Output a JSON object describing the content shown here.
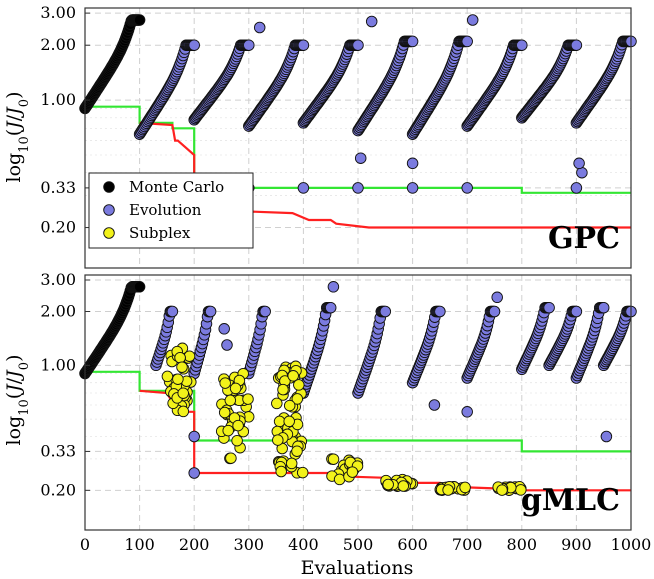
{
  "chart_data": [
    {
      "type": "scatter",
      "title": "GPC",
      "ylabel": "log10(J/J0)",
      "xlabel": "",
      "xlim": [
        0,
        1000
      ],
      "ylim": [
        0.12,
        3.2
      ],
      "y_scale": "log",
      "x_ticks": [
        0,
        100,
        200,
        300,
        400,
        500,
        600,
        700,
        800,
        900,
        1000
      ],
      "y_ticks": [
        0.2,
        0.33,
        1.0,
        2.0,
        3.0
      ],
      "y_tick_labels": [
        "0.20",
        "0.33",
        "1.00",
        "2.00",
        "3.00"
      ],
      "grid": true,
      "legend": {
        "placement": "lower-left",
        "entries": [
          {
            "label": "Monte Carlo",
            "color": "#000000"
          },
          {
            "label": "Evolution",
            "color": "#7b7bdf"
          },
          {
            "label": "Subplex",
            "color": "#f2f21a"
          }
        ]
      },
      "colors": {
        "monte_carlo": "#000000",
        "evolution": "#7b7bdf",
        "subplex": "#f2f21a",
        "best_line": "#ff2020",
        "green_line": "#33e633"
      },
      "monte_carlo": {
        "x_range": [
          0,
          100
        ],
        "y_start": 0.9,
        "y_end": 2.75
      },
      "evolution_generations": [
        {
          "x_range": [
            100,
            200
          ],
          "y_start": 0.65,
          "y_end": 2.0
        },
        {
          "x_range": [
            200,
            300
          ],
          "y_start": 0.78,
          "y_end": 2.0
        },
        {
          "x_range": [
            300,
            400
          ],
          "y_start": 0.72,
          "y_end": 2.0
        },
        {
          "x_range": [
            400,
            500
          ],
          "y_start": 0.75,
          "y_end": 2.0
        },
        {
          "x_range": [
            500,
            600
          ],
          "y_start": 0.68,
          "y_end": 2.1
        },
        {
          "x_range": [
            600,
            700
          ],
          "y_start": 0.65,
          "y_end": 2.1
        },
        {
          "x_range": [
            700,
            800
          ],
          "y_start": 0.72,
          "y_end": 2.0
        },
        {
          "x_range": [
            800,
            900
          ],
          "y_start": 0.8,
          "y_end": 2.0
        },
        {
          "x_range": [
            900,
            1000
          ],
          "y_start": 0.75,
          "y_end": 2.1
        }
      ],
      "evolution_extra_points": [
        [
          200,
          0.33
        ],
        [
          300,
          0.33
        ],
        [
          400,
          0.33
        ],
        [
          500,
          0.33
        ],
        [
          600,
          0.33
        ],
        [
          700,
          0.33
        ],
        [
          900,
          0.33
        ],
        [
          910,
          0.4
        ],
        [
          320,
          2.5
        ],
        [
          525,
          2.7
        ],
        [
          710,
          2.75
        ],
        [
          505,
          0.48
        ],
        [
          600,
          0.45
        ],
        [
          905,
          0.45
        ]
      ],
      "best_line": [
        [
          100,
          0.75
        ],
        [
          160,
          0.73
        ],
        [
          165,
          0.6
        ],
        [
          170,
          0.6
        ],
        [
          200,
          0.5
        ],
        [
          200,
          0.25
        ],
        [
          300,
          0.245
        ],
        [
          380,
          0.24
        ],
        [
          410,
          0.22
        ],
        [
          450,
          0.22
        ],
        [
          460,
          0.21
        ],
        [
          520,
          0.2
        ],
        [
          1000,
          0.2
        ]
      ],
      "green_line": [
        [
          0,
          0.92
        ],
        [
          100,
          0.92
        ],
        [
          100,
          0.75
        ],
        [
          160,
          0.75
        ],
        [
          160,
          0.7
        ],
        [
          200,
          0.7
        ],
        [
          200,
          0.33
        ],
        [
          800,
          0.33
        ],
        [
          800,
          0.31
        ],
        [
          1000,
          0.31
        ]
      ]
    },
    {
      "type": "scatter",
      "title": "gMLC",
      "ylabel": "log10(J/J0)",
      "xlabel": "Evaluations",
      "xlim": [
        0,
        1000
      ],
      "ylim": [
        0.12,
        3.2
      ],
      "y_scale": "log",
      "x_ticks": [
        0,
        100,
        200,
        300,
        400,
        500,
        600,
        700,
        800,
        900,
        1000
      ],
      "y_ticks": [
        0.2,
        0.33,
        1.0,
        2.0,
        3.0
      ],
      "y_tick_labels": [
        "0.20",
        "0.33",
        "1.00",
        "2.00",
        "3.00"
      ],
      "grid": true,
      "monte_carlo": {
        "x_range": [
          0,
          100
        ],
        "y_start": 0.9,
        "y_end": 2.75
      },
      "evolution_generations": [
        {
          "x_range": [
            130,
            160
          ],
          "y_start": 1.0,
          "y_end": 2.0
        },
        {
          "x_range": [
            200,
            230
          ],
          "y_start": 0.9,
          "y_end": 2.0
        },
        {
          "x_range": [
            300,
            330
          ],
          "y_start": 0.9,
          "y_end": 2.0
        },
        {
          "x_range": [
            400,
            450
          ],
          "y_start": 0.7,
          "y_end": 2.1
        },
        {
          "x_range": [
            500,
            550
          ],
          "y_start": 0.7,
          "y_end": 2.0
        },
        {
          "x_range": [
            600,
            650
          ],
          "y_start": 0.8,
          "y_end": 2.0
        },
        {
          "x_range": [
            700,
            750
          ],
          "y_start": 0.85,
          "y_end": 2.0
        },
        {
          "x_range": [
            800,
            850
          ],
          "y_start": 0.95,
          "y_end": 2.1
        },
        {
          "x_range": [
            850,
            900
          ],
          "y_start": 1.0,
          "y_end": 2.0
        },
        {
          "x_range": [
            900,
            950
          ],
          "y_start": 0.85,
          "y_end": 2.1
        },
        {
          "x_range": [
            950,
            1000
          ],
          "y_start": 1.0,
          "y_end": 2.0
        }
      ],
      "evolution_extra_points": [
        [
          200,
          0.25
        ],
        [
          200,
          0.4
        ],
        [
          455,
          2.75
        ],
        [
          755,
          2.4
        ],
        [
          955,
          0.4
        ],
        [
          640,
          0.6
        ],
        [
          700,
          0.55
        ],
        [
          255,
          1.6
        ],
        [
          260,
          1.3
        ]
      ],
      "subplex_clusters": [
        {
          "x_range": [
            150,
            195
          ],
          "y_range": [
            0.55,
            1.25
          ],
          "n": 40
        },
        {
          "x_range": [
            250,
            300
          ],
          "y_range": [
            0.3,
            0.9
          ],
          "n": 40
        },
        {
          "x_range": [
            350,
            400
          ],
          "y_range": [
            0.24,
            1.0
          ],
          "n": 60
        },
        {
          "x_range": [
            450,
            500
          ],
          "y_range": [
            0.23,
            0.3
          ],
          "n": 25
        },
        {
          "x_range": [
            550,
            600
          ],
          "y_range": [
            0.21,
            0.23
          ],
          "n": 20
        },
        {
          "x_range": [
            650,
            700
          ],
          "y_range": [
            0.2,
            0.21
          ],
          "n": 20
        },
        {
          "x_range": [
            750,
            800
          ],
          "y_range": [
            0.2,
            0.21
          ],
          "n": 20
        }
      ],
      "best_line": [
        [
          100,
          0.72
        ],
        [
          150,
          0.7
        ],
        [
          170,
          0.55
        ],
        [
          200,
          0.55
        ],
        [
          200,
          0.25
        ],
        [
          450,
          0.25
        ],
        [
          460,
          0.24
        ],
        [
          550,
          0.235
        ],
        [
          555,
          0.22
        ],
        [
          650,
          0.22
        ],
        [
          655,
          0.21
        ],
        [
          750,
          0.205
        ],
        [
          760,
          0.2
        ],
        [
          1000,
          0.2
        ]
      ],
      "green_line": [
        [
          0,
          0.92
        ],
        [
          100,
          0.92
        ],
        [
          100,
          0.72
        ],
        [
          200,
          0.72
        ],
        [
          200,
          0.38
        ],
        [
          800,
          0.38
        ],
        [
          800,
          0.33
        ],
        [
          1000,
          0.33
        ]
      ]
    }
  ]
}
